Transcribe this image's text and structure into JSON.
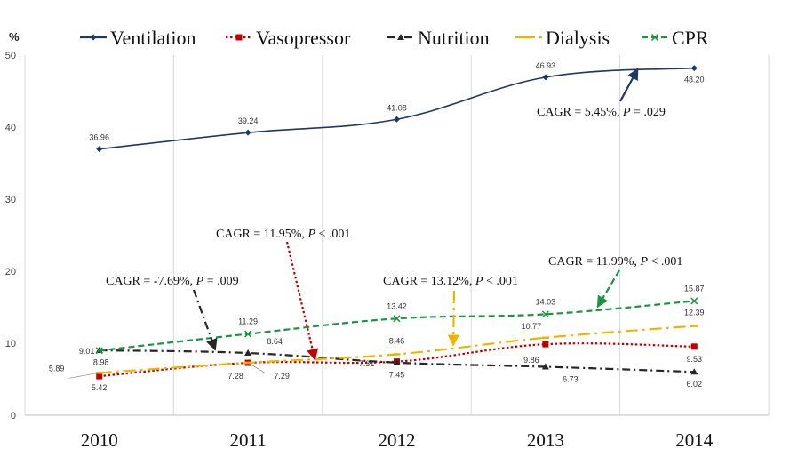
{
  "chart_data": {
    "type": "line",
    "ylabel": "%",
    "ylim": [
      0,
      50
    ],
    "yticks": [
      0,
      10,
      20,
      30,
      40,
      50
    ],
    "x": [
      "2010",
      "2011",
      "2012",
      "2013",
      "2014"
    ],
    "grid": "vertical",
    "legend": "top",
    "series": [
      {
        "name": "Ventilation",
        "color": "#1f3864",
        "marker": "diamond",
        "dash": "solid",
        "values": [
          36.96,
          39.24,
          41.08,
          46.93,
          48.2
        ],
        "labels": [
          "36.96",
          "39.24",
          "41.08",
          "46.93",
          "48.20"
        ]
      },
      {
        "name": "Vasopressor",
        "color": "#c00000",
        "marker": "square",
        "dash": "dotted",
        "values": [
          5.42,
          7.28,
          7.45,
          9.86,
          9.53
        ],
        "labels": [
          "5.42",
          "7.28",
          "7.45",
          "9.86",
          "9.53"
        ]
      },
      {
        "name": "Nutrition",
        "color": "#262626",
        "marker": "triangle",
        "dash": "dashdot",
        "values": [
          9.01,
          8.64,
          7.31,
          6.73,
          6.02
        ],
        "labels": [
          "9.01",
          "8.64",
          "7.31",
          "6.73",
          "6.02"
        ]
      },
      {
        "name": "Dialysis",
        "color": "#f0b400",
        "marker": "dash",
        "dash": "longdashdot",
        "values": [
          5.89,
          7.29,
          8.46,
          10.77,
          12.39
        ],
        "labels": [
          "5.89",
          "7.29",
          "8.46",
          "10.77",
          "12.39"
        ]
      },
      {
        "name": "CPR",
        "color": "#1a9641",
        "marker": "x",
        "dash": "dashed",
        "values": [
          8.98,
          11.29,
          13.42,
          14.03,
          15.87
        ],
        "labels": [
          "8.98",
          "11.29",
          "13.42",
          "14.03",
          "15.87"
        ]
      }
    ],
    "annotations": [
      {
        "series": "Ventilation",
        "text": "CAGR = 5.45%, ",
        "p": "P",
        "rest": " = .029"
      },
      {
        "series": "Vasopressor",
        "text": "CAGR = 11.95%, ",
        "p": "P",
        "rest": " < .001"
      },
      {
        "series": "Nutrition",
        "text": "CAGR = -7.69%, ",
        "p": "P",
        "rest": " = .009"
      },
      {
        "series": "Dialysis",
        "text": "CAGR = 13.12%, ",
        "p": "P",
        "rest": " < .001"
      },
      {
        "series": "CPR",
        "text": "CAGR = 11.99%, ",
        "p": "P",
        "rest": " < .001"
      }
    ]
  }
}
